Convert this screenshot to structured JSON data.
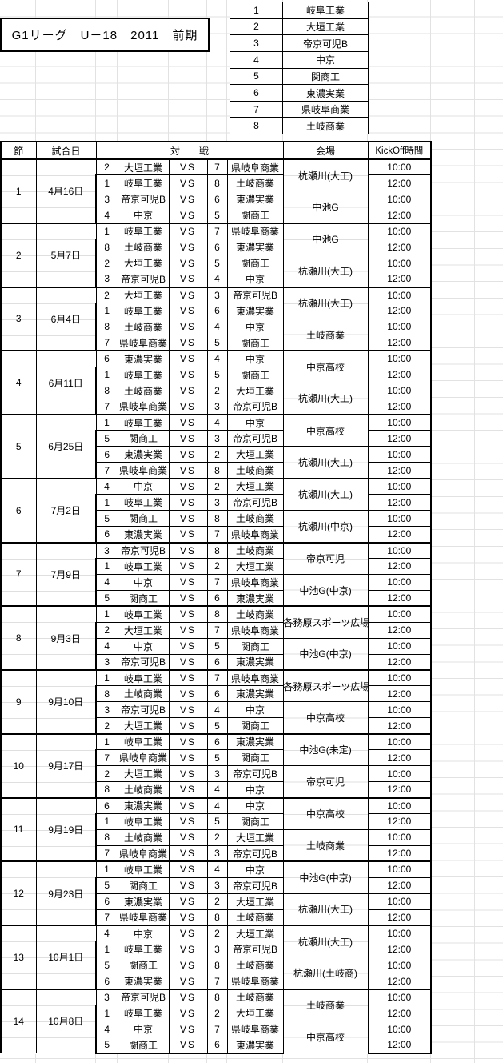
{
  "title": "G1リーグ　U－18　2011　前期",
  "teams": [
    {
      "no": "1",
      "name": "岐阜工業"
    },
    {
      "no": "2",
      "name": "大垣工業"
    },
    {
      "no": "3",
      "name": "帝京可児B"
    },
    {
      "no": "4",
      "name": "中京"
    },
    {
      "no": "5",
      "name": "関商工"
    },
    {
      "no": "6",
      "name": "東濃実業"
    },
    {
      "no": "7",
      "name": "県岐阜商業"
    },
    {
      "no": "8",
      "name": "土岐商業"
    }
  ],
  "schedule": {
    "headers": {
      "round": "節",
      "date": "試合日",
      "match": "対　　戦",
      "venue": "会場",
      "kickoff": "KickOff時間"
    },
    "vs_label": "VS",
    "rounds": [
      {
        "round": "1",
        "date": "4月16日",
        "matches": [
          {
            "home_no": "2",
            "home": "大垣工業",
            "away_no": "7",
            "away": "県岐阜商業",
            "time": "10:00"
          },
          {
            "home_no": "1",
            "home": "岐阜工業",
            "away_no": "8",
            "away": "土岐商業",
            "time": "12:00"
          },
          {
            "home_no": "3",
            "home": "帝京可児B",
            "away_no": "6",
            "away": "東濃実業",
            "time": "10:00"
          },
          {
            "home_no": "4",
            "home": "中京",
            "away_no": "5",
            "away": "関商工",
            "time": "12:00"
          }
        ],
        "venues": [
          "杭瀬川(大工)",
          "中池G"
        ]
      },
      {
        "round": "2",
        "date": "5月7日",
        "matches": [
          {
            "home_no": "1",
            "home": "岐阜工業",
            "away_no": "7",
            "away": "県岐阜商業",
            "time": "10:00"
          },
          {
            "home_no": "8",
            "home": "土岐商業",
            "away_no": "6",
            "away": "東濃実業",
            "time": "12:00"
          },
          {
            "home_no": "2",
            "home": "大垣工業",
            "away_no": "5",
            "away": "関商工",
            "time": "10:00"
          },
          {
            "home_no": "3",
            "home": "帝京可児B",
            "away_no": "4",
            "away": "中京",
            "time": "12:00"
          }
        ],
        "venues": [
          "中池G",
          "杭瀬川(大工)"
        ]
      },
      {
        "round": "3",
        "date": "6月4日",
        "matches": [
          {
            "home_no": "2",
            "home": "大垣工業",
            "away_no": "3",
            "away": "帝京可児B",
            "time": "10:00"
          },
          {
            "home_no": "1",
            "home": "岐阜工業",
            "away_no": "6",
            "away": "東濃実業",
            "time": "12:00"
          },
          {
            "home_no": "8",
            "home": "土岐商業",
            "away_no": "4",
            "away": "中京",
            "time": "10:00"
          },
          {
            "home_no": "7",
            "home": "県岐阜商業",
            "away_no": "5",
            "away": "関商工",
            "time": "12:00"
          }
        ],
        "venues": [
          "杭瀬川(大工)",
          "土岐商業"
        ]
      },
      {
        "round": "4",
        "date": "6月11日",
        "matches": [
          {
            "home_no": "6",
            "home": "東濃実業",
            "away_no": "4",
            "away": "中京",
            "time": "10:00"
          },
          {
            "home_no": "1",
            "home": "岐阜工業",
            "away_no": "5",
            "away": "関商工",
            "time": "12:00"
          },
          {
            "home_no": "8",
            "home": "土岐商業",
            "away_no": "2",
            "away": "大垣工業",
            "time": "10:00"
          },
          {
            "home_no": "7",
            "home": "県岐阜商業",
            "away_no": "3",
            "away": "帝京可児B",
            "time": "12:00"
          }
        ],
        "venues": [
          "中京高校",
          "杭瀬川(大工)"
        ]
      },
      {
        "round": "5",
        "date": "6月25日",
        "matches": [
          {
            "home_no": "1",
            "home": "岐阜工業",
            "away_no": "4",
            "away": "中京",
            "time": "10:00"
          },
          {
            "home_no": "5",
            "home": "関商工",
            "away_no": "3",
            "away": "帝京可児B",
            "time": "12:00"
          },
          {
            "home_no": "6",
            "home": "東濃実業",
            "away_no": "2",
            "away": "大垣工業",
            "time": "10:00"
          },
          {
            "home_no": "7",
            "home": "県岐阜商業",
            "away_no": "8",
            "away": "土岐商業",
            "time": "12:00"
          }
        ],
        "venues": [
          "中京高校",
          "杭瀬川(大工)"
        ]
      },
      {
        "round": "6",
        "date": "7月2日",
        "matches": [
          {
            "home_no": "4",
            "home": "中京",
            "away_no": "2",
            "away": "大垣工業",
            "time": "10:00"
          },
          {
            "home_no": "1",
            "home": "岐阜工業",
            "away_no": "3",
            "away": "帝京可児B",
            "time": "12:00"
          },
          {
            "home_no": "5",
            "home": "関商工",
            "away_no": "8",
            "away": "土岐商業",
            "time": "10:00"
          },
          {
            "home_no": "6",
            "home": "東濃実業",
            "away_no": "7",
            "away": "県岐阜商業",
            "time": "12:00"
          }
        ],
        "venues": [
          "杭瀬川(大工)",
          "杭瀬川(中京)"
        ]
      },
      {
        "round": "7",
        "date": "7月9日",
        "matches": [
          {
            "home_no": "3",
            "home": "帝京可児B",
            "away_no": "8",
            "away": "土岐商業",
            "time": "10:00"
          },
          {
            "home_no": "1",
            "home": "岐阜工業",
            "away_no": "2",
            "away": "大垣工業",
            "time": "12:00"
          },
          {
            "home_no": "4",
            "home": "中京",
            "away_no": "7",
            "away": "県岐阜商業",
            "time": "10:00"
          },
          {
            "home_no": "5",
            "home": "関商工",
            "away_no": "6",
            "away": "東濃実業",
            "time": "12:00"
          }
        ],
        "venues": [
          "帝京可児",
          "中池G(中京)"
        ]
      },
      {
        "round": "8",
        "date": "9月3日",
        "matches": [
          {
            "home_no": "1",
            "home": "岐阜工業",
            "away_no": "8",
            "away": "土岐商業",
            "time": "10:00"
          },
          {
            "home_no": "2",
            "home": "大垣工業",
            "away_no": "7",
            "away": "県岐阜商業",
            "time": "12:00"
          },
          {
            "home_no": "4",
            "home": "中京",
            "away_no": "5",
            "away": "関商工",
            "time": "10:00"
          },
          {
            "home_no": "3",
            "home": "帝京可児B",
            "away_no": "6",
            "away": "東濃実業",
            "time": "12:00"
          }
        ],
        "venues": [
          "各務原スポーツ広場",
          "中池G(中京)"
        ]
      },
      {
        "round": "9",
        "date": "9月10日",
        "matches": [
          {
            "home_no": "1",
            "home": "岐阜工業",
            "away_no": "7",
            "away": "県岐阜商業",
            "time": "10:00"
          },
          {
            "home_no": "8",
            "home": "土岐商業",
            "away_no": "6",
            "away": "東濃実業",
            "time": "12:00"
          },
          {
            "home_no": "3",
            "home": "帝京可児B",
            "away_no": "4",
            "away": "中京",
            "time": "10:00"
          },
          {
            "home_no": "2",
            "home": "大垣工業",
            "away_no": "5",
            "away": "関商工",
            "time": "12:00"
          }
        ],
        "venues": [
          "各務原スポーツ広場",
          "中京高校"
        ]
      },
      {
        "round": "10",
        "date": "9月17日",
        "matches": [
          {
            "home_no": "1",
            "home": "岐阜工業",
            "away_no": "6",
            "away": "東濃実業",
            "time": "10:00"
          },
          {
            "home_no": "7",
            "home": "県岐阜商業",
            "away_no": "5",
            "away": "関商工",
            "time": "12:00"
          },
          {
            "home_no": "2",
            "home": "大垣工業",
            "away_no": "3",
            "away": "帝京可児B",
            "time": "10:00"
          },
          {
            "home_no": "8",
            "home": "土岐商業",
            "away_no": "4",
            "away": "中京",
            "time": "12:00"
          }
        ],
        "venues": [
          "中池G(未定)",
          "帝京可児"
        ]
      },
      {
        "round": "11",
        "date": "9月19日",
        "matches": [
          {
            "home_no": "6",
            "home": "東濃実業",
            "away_no": "4",
            "away": "中京",
            "time": "10:00"
          },
          {
            "home_no": "1",
            "home": "岐阜工業",
            "away_no": "5",
            "away": "関商工",
            "time": "12:00"
          },
          {
            "home_no": "8",
            "home": "土岐商業",
            "away_no": "2",
            "away": "大垣工業",
            "time": "10:00"
          },
          {
            "home_no": "7",
            "home": "県岐阜商業",
            "away_no": "3",
            "away": "帝京可児B",
            "time": "12:00"
          }
        ],
        "venues": [
          "中京高校",
          "土岐商業"
        ]
      },
      {
        "round": "12",
        "date": "9月23日",
        "matches": [
          {
            "home_no": "1",
            "home": "岐阜工業",
            "away_no": "4",
            "away": "中京",
            "time": "10:00"
          },
          {
            "home_no": "5",
            "home": "関商工",
            "away_no": "3",
            "away": "帝京可児B",
            "time": "12:00"
          },
          {
            "home_no": "6",
            "home": "東濃実業",
            "away_no": "2",
            "away": "大垣工業",
            "time": "10:00"
          },
          {
            "home_no": "7",
            "home": "県岐阜商業",
            "away_no": "8",
            "away": "土岐商業",
            "time": "12:00"
          }
        ],
        "venues": [
          "中池G(中京)",
          "杭瀬川(大工)"
        ]
      },
      {
        "round": "13",
        "date": "10月1日",
        "matches": [
          {
            "home_no": "4",
            "home": "中京",
            "away_no": "2",
            "away": "大垣工業",
            "time": "10:00"
          },
          {
            "home_no": "1",
            "home": "岐阜工業",
            "away_no": "3",
            "away": "帝京可児B",
            "time": "12:00"
          },
          {
            "home_no": "5",
            "home": "関商工",
            "away_no": "8",
            "away": "土岐商業",
            "time": "10:00"
          },
          {
            "home_no": "6",
            "home": "東濃実業",
            "away_no": "7",
            "away": "県岐阜商業",
            "time": "12:00"
          }
        ],
        "venues": [
          "杭瀬川(大工)",
          "杭瀬川(土岐商)"
        ]
      },
      {
        "round": "14",
        "date": "10月8日",
        "matches": [
          {
            "home_no": "3",
            "home": "帝京可児B",
            "away_no": "8",
            "away": "土岐商業",
            "time": "10:00"
          },
          {
            "home_no": "1",
            "home": "岐阜工業",
            "away_no": "2",
            "away": "大垣工業",
            "time": "12:00"
          },
          {
            "home_no": "4",
            "home": "中京",
            "away_no": "7",
            "away": "県岐阜商業",
            "time": "10:00"
          },
          {
            "home_no": "5",
            "home": "関商工",
            "away_no": "6",
            "away": "東濃実業",
            "time": "12:00"
          }
        ],
        "venues": [
          "土岐商業",
          "中京高校"
        ]
      }
    ]
  },
  "colors": {
    "border": "#000000",
    "faint_grid": "#e2e2e2",
    "background": "#ffffff",
    "text": "#000000"
  }
}
